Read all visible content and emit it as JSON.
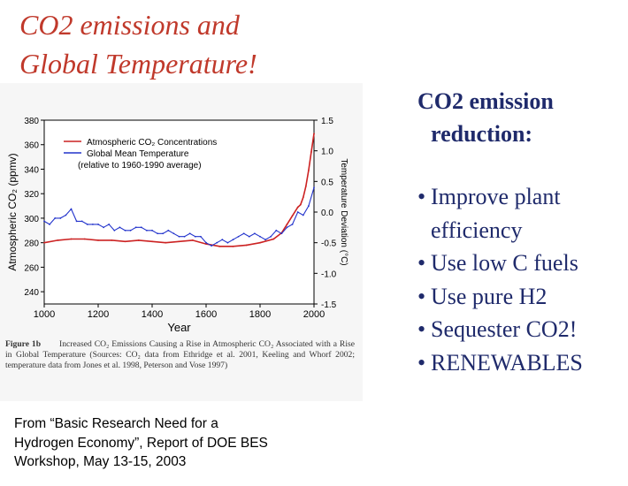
{
  "slide": {
    "title_line1": "CO2 emissions and",
    "title_line2": "Global Temperature!",
    "title_color": "#c0392b"
  },
  "bullets": {
    "heading_line1": "CO2 emission",
    "heading_line2": "reduction:",
    "bullet_char": "•",
    "items": [
      "Improve plant efficiency",
      "Use low C fuels",
      "Use pure H2",
      "Sequester CO2!",
      "RENEWABLES"
    ],
    "color": "#1f2a6b"
  },
  "figure_caption": {
    "label": "Figure 1b",
    "text": "Increased CO₂ Emissions Causing a Rise in Atmospheric CO₂ Associated with a Rise in Global Temperature (Sources: CO₂ data from Ethridge et al. 2001, Keeling and Whorf 2002; temperature data from Jones et al. 1998, Peterson and Vose 1997)"
  },
  "source": {
    "line1": "From  “Basic Research Need for a",
    "line2": "Hydrogen Economy”, Report of  DOE BES",
    "line3": "Workshop, May 13-15, 2003"
  },
  "chart_data": {
    "type": "line",
    "xlabel": "Year",
    "ylabel_left": "Atmospheric CO₂ (ppmv)",
    "ylabel_right": "Temperature Deviation (°C)",
    "xlim": [
      1000,
      2000
    ],
    "xticks": [
      1000,
      1200,
      1400,
      1600,
      1800,
      2000
    ],
    "ylim_left": [
      230,
      380
    ],
    "yticks_left": [
      240,
      260,
      280,
      300,
      320,
      340,
      360,
      380
    ],
    "ylim_right": [
      -1.5,
      1.5
    ],
    "yticks_right": [
      "1.5",
      "1.0",
      "0.5",
      "0.0",
      "-0.5",
      "-1.0",
      "-1.5"
    ],
    "legend": {
      "position": "top-left",
      "entries": [
        {
          "label": "Atmospheric CO₂  Concentrations",
          "color": "#cc2222"
        },
        {
          "label": "Global Mean Temperature",
          "color": "#2233cc"
        },
        {
          "label": "(relative to 1960-1990 average)",
          "color": ""
        }
      ]
    },
    "series": [
      {
        "name": "Atmospheric CO₂ Concentrations",
        "axis": "left",
        "color": "#cc2222",
        "x": [
          1000,
          1050,
          1100,
          1150,
          1200,
          1250,
          1300,
          1350,
          1400,
          1450,
          1500,
          1550,
          1600,
          1650,
          1700,
          1750,
          1800,
          1850,
          1880,
          1900,
          1920,
          1940,
          1950,
          1960,
          1970,
          1980,
          1990,
          2000
        ],
        "values": [
          280,
          282,
          283,
          283,
          282,
          282,
          281,
          282,
          281,
          280,
          281,
          282,
          279,
          277,
          277,
          278,
          280,
          283,
          288,
          295,
          302,
          309,
          311,
          317,
          326,
          339,
          354,
          369
        ]
      },
      {
        "name": "Global Mean Temperature",
        "axis": "right",
        "color": "#2233cc",
        "x": [
          1000,
          1020,
          1040,
          1060,
          1080,
          1100,
          1120,
          1140,
          1160,
          1180,
          1200,
          1220,
          1240,
          1260,
          1280,
          1300,
          1320,
          1340,
          1360,
          1380,
          1400,
          1420,
          1440,
          1460,
          1480,
          1500,
          1520,
          1540,
          1560,
          1580,
          1600,
          1620,
          1640,
          1660,
          1680,
          1700,
          1720,
          1740,
          1760,
          1780,
          1800,
          1820,
          1840,
          1860,
          1880,
          1900,
          1920,
          1940,
          1960,
          1980,
          2000
        ],
        "values": [
          -0.15,
          -0.2,
          -0.1,
          -0.1,
          -0.05,
          0.05,
          -0.15,
          -0.15,
          -0.2,
          -0.2,
          -0.2,
          -0.25,
          -0.2,
          -0.3,
          -0.25,
          -0.3,
          -0.3,
          -0.25,
          -0.25,
          -0.3,
          -0.3,
          -0.35,
          -0.35,
          -0.3,
          -0.35,
          -0.4,
          -0.4,
          -0.35,
          -0.4,
          -0.4,
          -0.5,
          -0.55,
          -0.5,
          -0.45,
          -0.5,
          -0.45,
          -0.4,
          -0.35,
          -0.4,
          -0.35,
          -0.4,
          -0.45,
          -0.4,
          -0.3,
          -0.35,
          -0.25,
          -0.2,
          0.0,
          -0.05,
          0.1,
          0.4
        ]
      }
    ]
  }
}
